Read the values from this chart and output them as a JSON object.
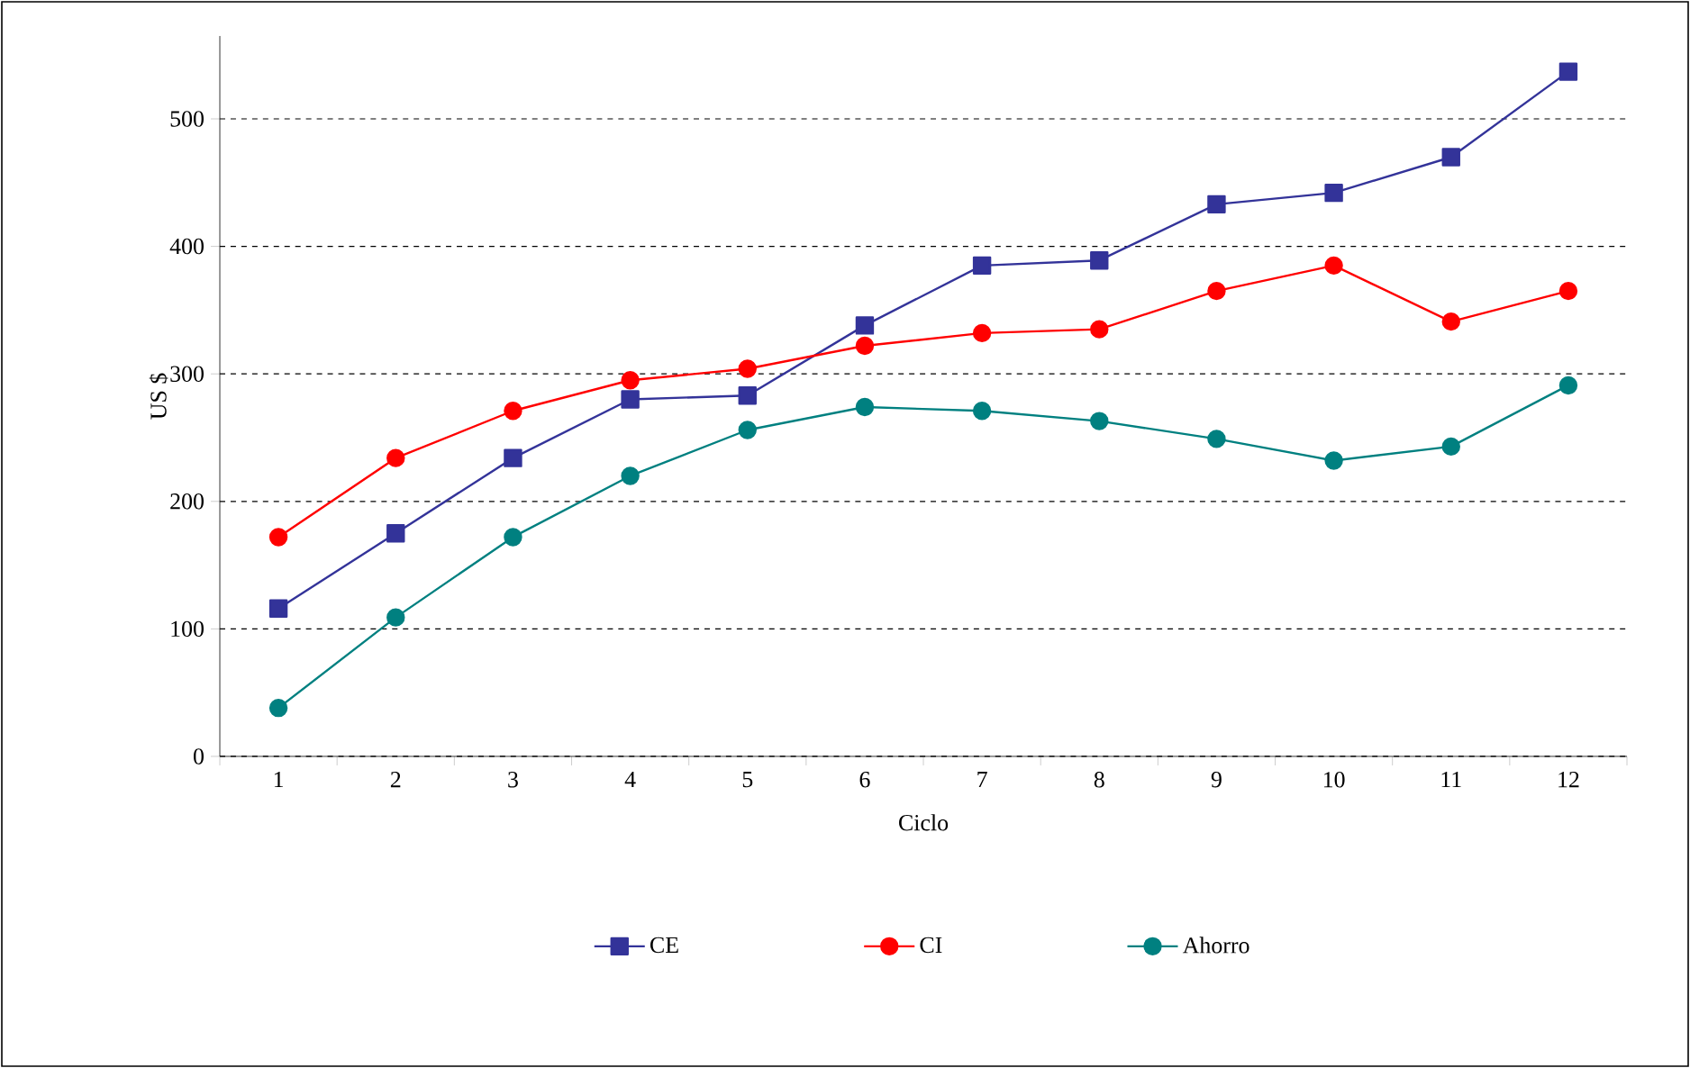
{
  "chart_data": {
    "type": "line",
    "xlabel": "Ciclo",
    "ylabel": "US $",
    "categories": [
      "1",
      "2",
      "3",
      "4",
      "5",
      "6",
      "7",
      "8",
      "9",
      "10",
      "11",
      "12"
    ],
    "series": [
      {
        "name": "CE",
        "color": "#333399",
        "marker": "square",
        "values": [
          116,
          175,
          234,
          280,
          283,
          338,
          385,
          389,
          433,
          442,
          470,
          537
        ]
      },
      {
        "name": "CI",
        "color": "#ff0000",
        "marker": "circle",
        "values": [
          172,
          234,
          271,
          295,
          304,
          322,
          332,
          335,
          365,
          385,
          341,
          365
        ]
      },
      {
        "name": "Ahorro",
        "color": "#008080",
        "marker": "circle",
        "values": [
          38,
          109,
          172,
          220,
          256,
          274,
          271,
          263,
          249,
          232,
          243,
          291
        ]
      }
    ],
    "ylim": [
      0,
      565
    ],
    "yticks": [
      0,
      100,
      200,
      300,
      400,
      500
    ],
    "grid": "y",
    "legend": "bottom",
    "line_style": "solid"
  }
}
